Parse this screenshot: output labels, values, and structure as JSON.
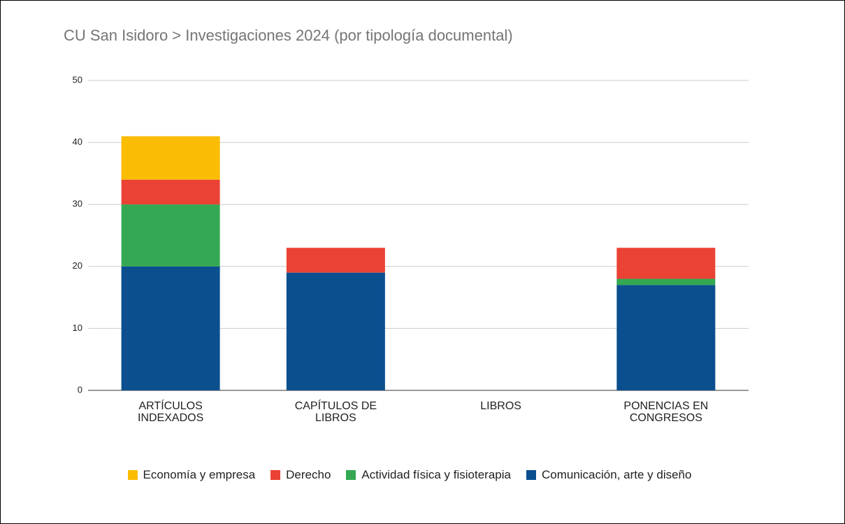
{
  "chart_data": {
    "type": "stacked_bar",
    "title": "CU San Isidoro > Investigaciones 2024 (por tipología documental)",
    "categories": [
      "ARTÍCULOS INDEXADOS",
      "CAPÍTULOS DE LIBROS",
      "LIBROS",
      "PONENCIAS EN CONGRESOS"
    ],
    "series": [
      {
        "name": "Economía y empresa",
        "color": "#fbbc04",
        "values": [
          7,
          0,
          0,
          0
        ]
      },
      {
        "name": "Derecho",
        "color": "#ea4335",
        "values": [
          4,
          4,
          0,
          5
        ]
      },
      {
        "name": "Actividad física y fisioterapia",
        "color": "#34a853",
        "values": [
          10,
          0,
          0,
          1
        ]
      },
      {
        "name": "Comunicación, arte y diseño",
        "color": "#0b4f8f",
        "values": [
          20,
          19,
          0,
          17
        ]
      }
    ],
    "ylim": [
      0,
      50
    ],
    "yticks": [
      0,
      10,
      20,
      30,
      40,
      50
    ],
    "grid": true,
    "legend": "bottom"
  }
}
